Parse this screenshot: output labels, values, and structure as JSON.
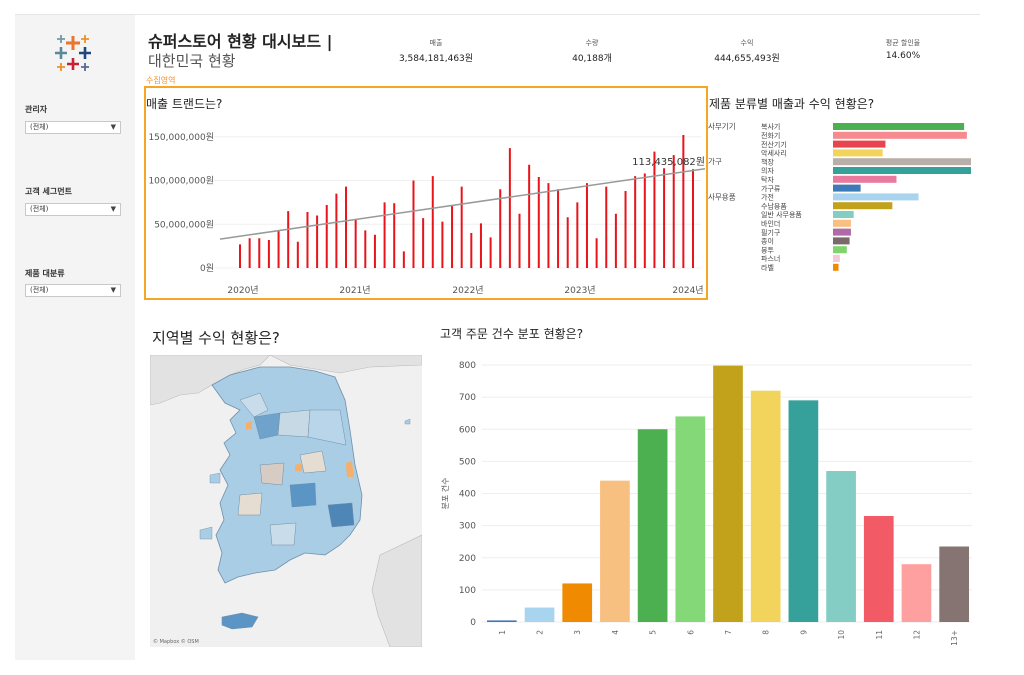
{
  "dashboard": {
    "title": "슈퍼스토어 현황 대시보드 |",
    "subtitle": "대한민국 현황",
    "collect_tag": "수집영역"
  },
  "filters": [
    {
      "label": "관리자",
      "value": "(전체)"
    },
    {
      "label": "고객 세그먼트",
      "value": "(전체)"
    },
    {
      "label": "제품 대분류",
      "value": "(전체)"
    }
  ],
  "kpis": [
    {
      "label": "매출",
      "value": "3,584,181,463원"
    },
    {
      "label": "수량",
      "value": "40,188개"
    },
    {
      "label": "수익",
      "value": "444,655,493원"
    },
    {
      "label": "평균 할인율",
      "value": "14.60%"
    }
  ],
  "colors": {
    "accent": "#f5a623",
    "bar_red": "#e8141a",
    "trend": "#999999"
  },
  "sections": {
    "trend_title": "매출 트랜드는?",
    "category_title": "제품 분류별 매출과 수익 현황은?",
    "region_title": "지역별 수익 현황은?",
    "orders_title": "고객 주문 건수 분포 현황은?",
    "map_credit": "© Mapbox © OSM"
  },
  "chart_data": [
    {
      "type": "bar",
      "title": "매출 트랜드는?",
      "ylim": [
        0,
        160000000
      ],
      "yticks": [
        "0원",
        "50,000,000원",
        "100,000,000원",
        "150,000,000원"
      ],
      "ytick_values": [
        0,
        50000000,
        100000000,
        150000000
      ],
      "xticks": [
        "2020년",
        "2021년",
        "2022년",
        "2023년",
        "2024년"
      ],
      "annotation": "113,435,082원",
      "trend_start": 33000000,
      "trend_end": 113435082,
      "values": [
        27000000,
        34000000,
        34000000,
        32000000,
        43000000,
        65000000,
        30000000,
        64000000,
        60000000,
        72000000,
        85000000,
        93000000,
        55000000,
        43000000,
        38000000,
        75000000,
        74000000,
        19000000,
        100000000,
        57000000,
        105000000,
        53000000,
        72000000,
        93000000,
        40000000,
        51000000,
        35000000,
        90000000,
        137000000,
        62000000,
        118000000,
        104000000,
        97000000,
        90000000,
        58000000,
        75000000,
        97000000,
        34000000,
        93000000,
        62000000,
        88000000,
        105000000,
        108000000,
        133000000,
        114000000,
        129000000,
        152000000,
        113000000
      ]
    },
    {
      "type": "bar",
      "title": "제품 분류별 매출과 수익 현황은?",
      "groups": [
        {
          "name": "사무기기",
          "items": [
            {
              "label": "복사기",
              "value": 95,
              "color": "#4caf50"
            },
            {
              "label": "전화기",
              "value": 97,
              "color": "#f58a8f"
            },
            {
              "label": "전산기기",
              "value": 38,
              "color": "#e8444d"
            },
            {
              "label": "악세사리",
              "value": 36,
              "color": "#f2d35c"
            }
          ]
        },
        {
          "name": "가구",
          "items": [
            {
              "label": "책장",
              "value": 100,
              "color": "#b8b0a8"
            },
            {
              "label": "의자",
              "value": 100,
              "color": "#36a19a"
            },
            {
              "label": "탁자",
              "value": 46,
              "color": "#e87aa0"
            },
            {
              "label": "가구류",
              "value": 20,
              "color": "#3d7ab8"
            }
          ]
        },
        {
          "name": "사무용품",
          "items": [
            {
              "label": "가전",
              "value": 62,
              "color": "#a8d4f0"
            },
            {
              "label": "수납용품",
              "value": 43,
              "color": "#c2a21a"
            },
            {
              "label": "일반 사무용품",
              "value": 15,
              "color": "#84cdc4"
            },
            {
              "label": "바인더",
              "value": 13,
              "color": "#f7bf80"
            },
            {
              "label": "필기구",
              "value": 13,
              "color": "#b06aa8"
            },
            {
              "label": "종이",
              "value": 12,
              "color": "#7a6a6a"
            },
            {
              "label": "봉투",
              "value": 10,
              "color": "#7fd46a"
            },
            {
              "label": "파스너",
              "value": 5,
              "color": "#f7c8d8"
            },
            {
              "label": "라벨",
              "value": 4,
              "color": "#f08a00"
            }
          ]
        }
      ]
    },
    {
      "type": "bar",
      "title": "고객 주문 건수 분포 현황은?",
      "ylabel": "분포 건수",
      "ylim": [
        0,
        800
      ],
      "yticks": [
        0,
        100,
        200,
        300,
        400,
        500,
        600,
        700,
        800
      ],
      "categories": [
        "1",
        "2",
        "3",
        "4",
        "5",
        "6",
        "7",
        "8",
        "9",
        "10",
        "11",
        "12",
        "13+"
      ],
      "values": [
        5,
        45,
        120,
        440,
        600,
        640,
        798,
        720,
        690,
        470,
        330,
        180,
        235
      ],
      "colors": [
        "#3d7ab8",
        "#a8d4f0",
        "#f08a00",
        "#f7bf80",
        "#4caf50",
        "#84d878",
        "#c2a21a",
        "#f2d35c",
        "#36a19a",
        "#84cdc4",
        "#f25a66",
        "#ffa0a0",
        "#857472"
      ]
    }
  ]
}
